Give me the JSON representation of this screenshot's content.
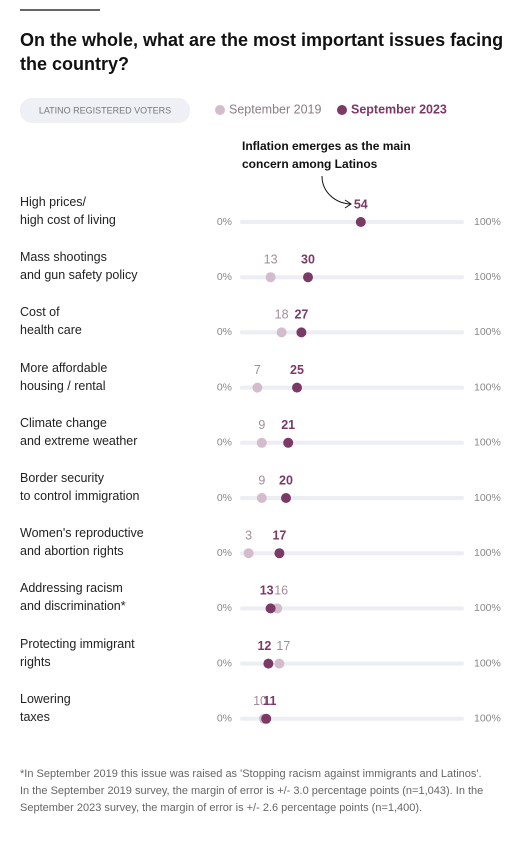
{
  "chart_data": {
    "type": "dot",
    "title": "On the whole, what are the most important issues facing the country?",
    "population": "LATINO REGISTERED VOTERS",
    "annotation": "Inflation emerges as the main concern among Latinos",
    "categories": [
      "High prices/\nhigh cost of living",
      "Mass shootings\nand gun safety policy",
      "Cost of\nhealth care",
      "More affordable\nhousing / rental",
      "Climate change\nand extreme weather",
      "Border security\nto control immigration",
      "Women's reproductive\nand abortion rights",
      "Addressing racism\nand discrimination*",
      "Protecting immigrant\nrights",
      "Lowering\ntaxes"
    ],
    "series": [
      {
        "name": "September 2019",
        "color": "#d3bccb",
        "values": [
          null,
          13,
          18,
          7,
          9,
          9,
          3,
          16,
          17,
          10
        ]
      },
      {
        "name": "September 2023",
        "color": "#7b3a66",
        "values": [
          54,
          30,
          27,
          25,
          21,
          20,
          17,
          13,
          12,
          11
        ]
      }
    ],
    "xlim": [
      0,
      100
    ],
    "xticks": [
      {
        "value": 0,
        "label": "0%"
      },
      {
        "value": 100,
        "label": "100%"
      }
    ],
    "footnote": "*In September 2019 this issue was raised as 'Stopping racism against immigrants and Latinos'. In the September 2019 survey, the margin of error is +/- 3.0 percentage points (n=1,043). In the September 2023 survey, the margin of error is +/- 2.6 percentage points (n=1,400)."
  }
}
